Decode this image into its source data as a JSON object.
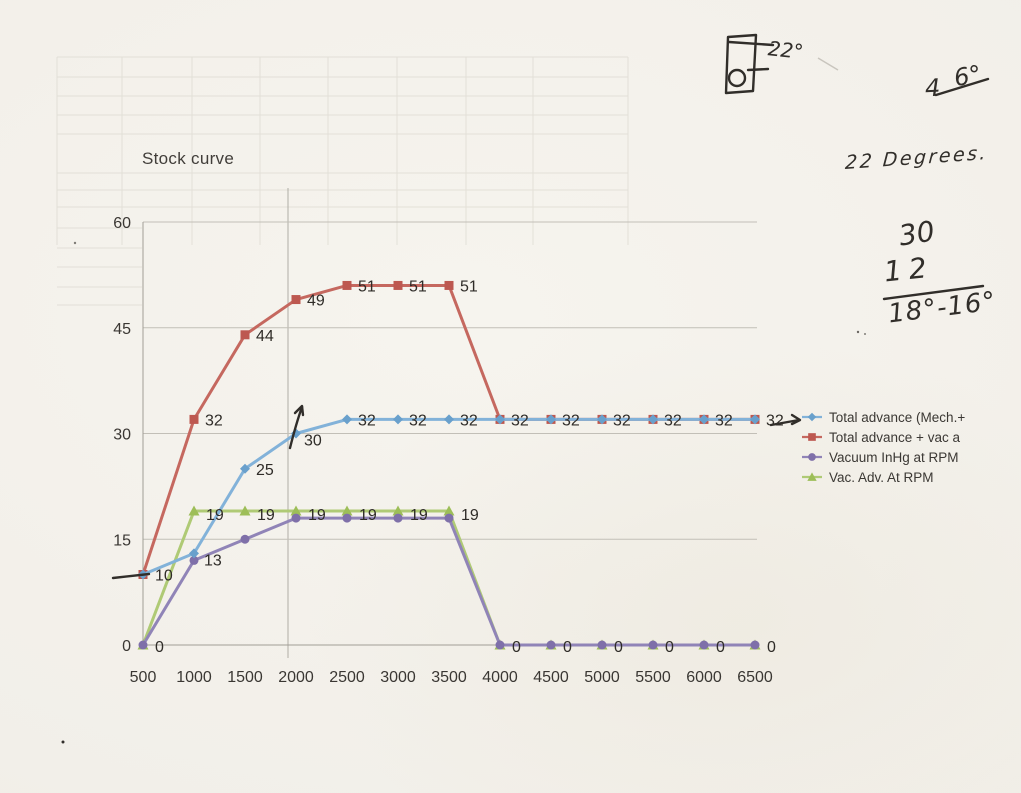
{
  "colors": {
    "paper": "#f2efe8",
    "ink": "#312e2a",
    "chart_text": "#3a3733",
    "gridline": "#c2bfb7",
    "axis": "#a19e96"
  },
  "chart_data": {
    "type": "line",
    "title": "Stock curve",
    "xlabel": "",
    "ylabel": "",
    "x": [
      500,
      1000,
      1500,
      2000,
      2500,
      3000,
      3500,
      4000,
      4500,
      5000,
      5500,
      6000,
      6500
    ],
    "ylim": [
      0,
      60
    ],
    "y_ticks": [
      0,
      15,
      30,
      45,
      60
    ],
    "grid": "horizontal",
    "legend_position": "right",
    "series": [
      {
        "name": "Total advance (Mech.+",
        "marker": "diamond",
        "line_color": "#82b2d9",
        "marker_color": "#69a0cc",
        "values": [
          10,
          13,
          25,
          30,
          32,
          32,
          32,
          32,
          32,
          32,
          32,
          32,
          32
        ],
        "labels": [
          "10",
          "13",
          "25",
          "30",
          "32",
          "32",
          "32",
          "32",
          "32",
          "32",
          "32",
          "32",
          "32"
        ]
      },
      {
        "name": "Total advance + vac a",
        "marker": "square",
        "line_color": "#c5685f",
        "marker_color": "#bd5850",
        "values": [
          10,
          32,
          44,
          49,
          51,
          51,
          51,
          32,
          32,
          32,
          32,
          32,
          32
        ],
        "labels": [
          null,
          "32",
          "44",
          "49",
          "51",
          "51",
          "51",
          null,
          null,
          null,
          null,
          null,
          null
        ]
      },
      {
        "name": "Vacuum InHg at RPM",
        "marker": "circle",
        "line_color": "#9084b7",
        "marker_color": "#7f70a9",
        "values": [
          0,
          12,
          15,
          18,
          18,
          18,
          18,
          0,
          0,
          0,
          0,
          0,
          0
        ],
        "labels": [
          "0",
          null,
          null,
          null,
          null,
          null,
          null,
          "0",
          "0",
          "0",
          "0",
          "0",
          "0"
        ]
      },
      {
        "name": "Vac. Adv. At RPM",
        "marker": "triangle",
        "line_color": "#afca75",
        "marker_color": "#9dbe58",
        "values": [
          0,
          19,
          19,
          19,
          19,
          19,
          19,
          0,
          0,
          0,
          0,
          0,
          0
        ],
        "labels": [
          null,
          "19",
          "19",
          "19",
          "19",
          "19",
          "19",
          null,
          null,
          null,
          null,
          null,
          null
        ]
      }
    ]
  },
  "annotations": {
    "distributor_sketch_label": "22°",
    "timing_left": "4",
    "timing_right": "6°",
    "degrees_note": "22 Degrees.",
    "fraction_top": "30",
    "fraction_mid": "12",
    "fraction_bottom": "18°-16°"
  }
}
